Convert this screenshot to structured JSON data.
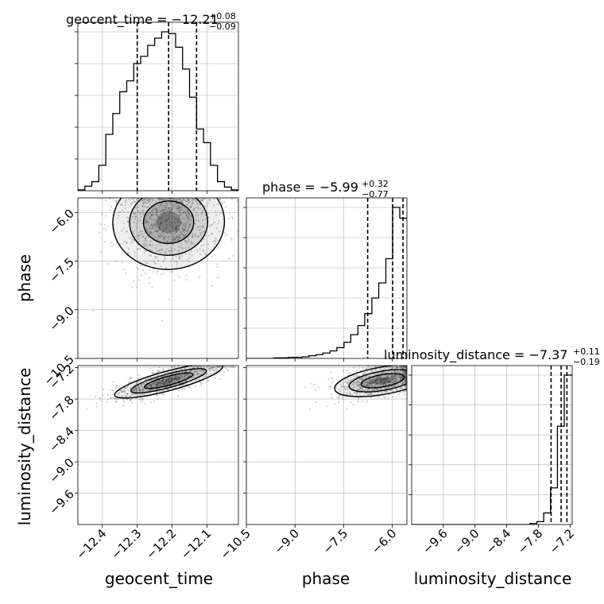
{
  "chart_data": {
    "type": "corner",
    "parameters": [
      "geocent_time",
      "phase",
      "luminosity_distance"
    ],
    "titles": [
      {
        "param": "geocent_time",
        "text": "geocent_time = −12.21",
        "plus": "+0.08",
        "minus": "−0.09",
        "median": -12.21,
        "lower": -12.3,
        "upper": -12.13
      },
      {
        "param": "phase",
        "text": "phase = −5.99",
        "plus": "+0.32",
        "minus": "−0.77",
        "median": -5.99,
        "lower": -6.76,
        "upper": -5.67
      },
      {
        "param": "luminosity_distance",
        "text": "luminosity_distance = −7.37",
        "plus": "+0.11",
        "minus": "−0.19",
        "median": -7.37,
        "lower": -7.56,
        "upper": -7.26
      }
    ],
    "axes": {
      "geocent_time": {
        "range": [
          -12.47,
          -12.01
        ],
        "ticks": [
          -12.4,
          -12.3,
          -12.2,
          -12.1
        ],
        "tick_labels": [
          "−12.4",
          "−12.3",
          "−12.2",
          "−12.1"
        ]
      },
      "phase": {
        "range": [
          -10.5,
          -5.55
        ],
        "ticks": [
          -10.5,
          -9.0,
          -7.5,
          -6.0
        ],
        "tick_labels": [
          "−10.5",
          "−9.0",
          "−7.5",
          "−6.0"
        ]
      },
      "luminosity_distance": {
        "range": [
          -10.2,
          -7.16
        ],
        "ticks": [
          -9.6,
          -9.0,
          -8.4,
          -7.8,
          -7.2
        ],
        "tick_labels": [
          "−9.6",
          "−9.0",
          "−8.4",
          "−7.8",
          "−7.2"
        ]
      }
    },
    "axis_labels": {
      "geocent_time": "geocent_time",
      "phase": "phase",
      "luminosity_distance": "luminosity_distance"
    },
    "histograms": {
      "geocent_time": {
        "edges": [
          -12.47,
          -12.45,
          -12.43,
          -12.41,
          -12.39,
          -12.37,
          -12.35,
          -12.33,
          -12.31,
          -12.29,
          -12.27,
          -12.25,
          -12.23,
          -12.21,
          -12.19,
          -12.17,
          -12.15,
          -12.13,
          -12.11,
          -12.09,
          -12.07,
          -12.05,
          -12.03,
          -12.01
        ],
        "counts": [
          1,
          5,
          10,
          28,
          62,
          85,
          109,
          121,
          140,
          148,
          160,
          168,
          175,
          173,
          158,
          134,
          103,
          68,
          53,
          28,
          10,
          4,
          1
        ]
      },
      "phase": {
        "edges": [
          -10.5,
          -10.29,
          -10.07,
          -9.86,
          -9.64,
          -9.43,
          -9.21,
          -9.0,
          -8.78,
          -8.57,
          -8.35,
          -8.14,
          -7.92,
          -7.71,
          -7.49,
          -7.28,
          -7.06,
          -6.85,
          -6.63,
          -6.42,
          -6.2,
          -5.99,
          -5.77,
          -5.55
        ],
        "counts": [
          0,
          0,
          0,
          0,
          1,
          1,
          2,
          2,
          3,
          5,
          7,
          10,
          14,
          20,
          30,
          44,
          61,
          83,
          112,
          140,
          185,
          280,
          260
        ]
      },
      "luminosity_distance": {
        "edges": [
          -10.2,
          -10.07,
          -9.94,
          -9.8,
          -9.67,
          -9.54,
          -9.41,
          -9.28,
          -9.15,
          -9.01,
          -8.88,
          -8.75,
          -8.62,
          -8.49,
          -8.36,
          -8.22,
          -8.09,
          -7.96,
          -7.83,
          -7.7,
          -7.57,
          -7.44,
          -7.31,
          -7.16
        ],
        "counts": [
          0,
          0,
          0,
          0,
          0,
          0,
          0,
          0,
          0,
          0,
          0,
          0,
          0,
          0,
          0,
          0,
          0,
          1,
          3,
          12,
          38,
          102,
          155
        ]
      }
    },
    "pairs": [
      {
        "x": "geocent_time",
        "y": "phase",
        "mean": [
          -12.21,
          -6.3
        ],
        "sd": [
          0.08,
          0.75
        ],
        "corr": 0.05
      },
      {
        "x": "geocent_time",
        "y": "luminosity_distance",
        "mean": [
          -12.21,
          -7.45
        ],
        "sd": [
          0.08,
          0.18
        ],
        "corr": 0.8
      },
      {
        "x": "phase",
        "y": "luminosity_distance",
        "mean": [
          -6.3,
          -7.45
        ],
        "sd": [
          0.75,
          0.18
        ],
        "corr": 0.45
      }
    ],
    "grid": true,
    "colors": {
      "hist_line": "#000000",
      "quantile_line": "#000000",
      "scatter": "#555555",
      "grid": "#b0b0b0"
    }
  }
}
